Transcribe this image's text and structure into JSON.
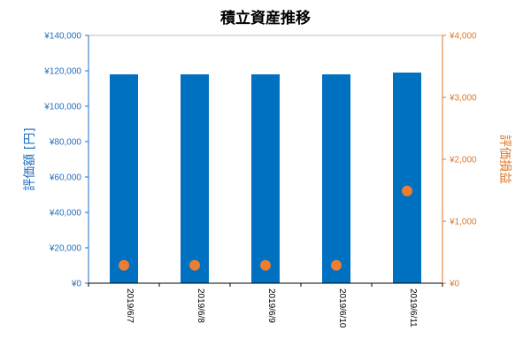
{
  "chart_data": {
    "type": "bar",
    "title": "積立資産推移",
    "categories": [
      "2019/6/7",
      "2019/6/8",
      "2019/6/9",
      "2019/6/10",
      "2019/6/11"
    ],
    "xlabel": "",
    "ylabel": "評価額 [円]",
    "ylabel_right": "評価損益",
    "ylim": [
      0,
      140000
    ],
    "ylim_right": [
      0,
      4000
    ],
    "yticks": [
      "¥0",
      "¥20,000",
      "¥40,000",
      "¥60,000",
      "¥80,000",
      "¥100,000",
      "¥120,000",
      "¥140,000"
    ],
    "yticks_right": [
      "¥0",
      "¥1,000",
      "¥2,000",
      "¥3,000",
      "¥4,000"
    ],
    "grid": false,
    "series": [
      {
        "type": "bar",
        "axis": "left",
        "values": [
          118000,
          118000,
          118000,
          118000,
          119000
        ],
        "color": "#0070c0"
      },
      {
        "type": "scatter",
        "axis": "right",
        "values": [
          290,
          290,
          290,
          290,
          1490
        ],
        "color": "#ed7d31"
      }
    ],
    "colors": {
      "left_axis": "#1f6fbf",
      "right_axis": "#e0782a"
    }
  }
}
